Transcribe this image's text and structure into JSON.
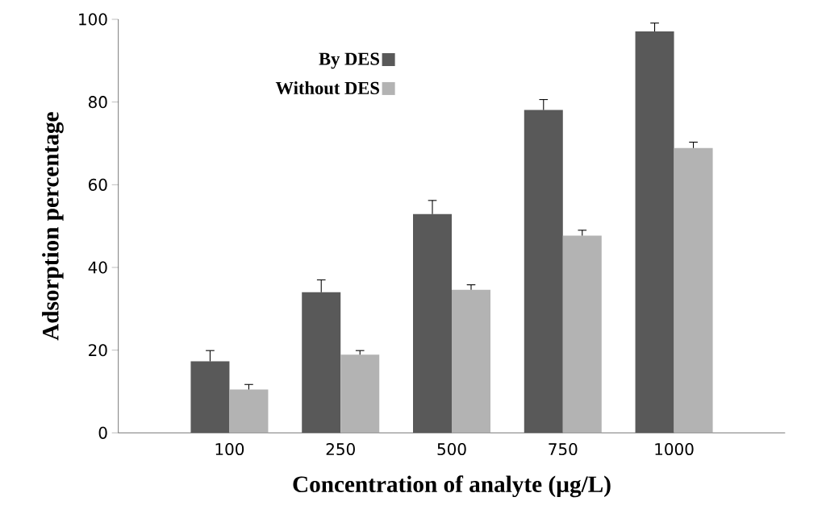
{
  "chart_data": {
    "type": "bar",
    "xlabel": "Concentration of analyte  (µg/L)",
    "ylabel": "Adsorption percentage",
    "categories": [
      "100",
      "250",
      "500",
      "750",
      "1000"
    ],
    "series": [
      {
        "name": "By DES",
        "color": "#595959",
        "values": [
          17.3,
          34,
          52.9,
          78.1,
          97.1
        ],
        "errors": [
          2.6,
          3,
          3.3,
          2.5,
          2
        ]
      },
      {
        "name": "Without DES",
        "color": "#b3b3b3",
        "values": [
          10.5,
          18.9,
          34.6,
          47.7,
          68.9
        ],
        "errors": [
          1.2,
          1,
          1.2,
          1.3,
          1.4
        ]
      }
    ],
    "ylim": [
      0,
      100
    ],
    "yticks": [
      0,
      20,
      40,
      60,
      80,
      100
    ],
    "legend": "top left"
  }
}
